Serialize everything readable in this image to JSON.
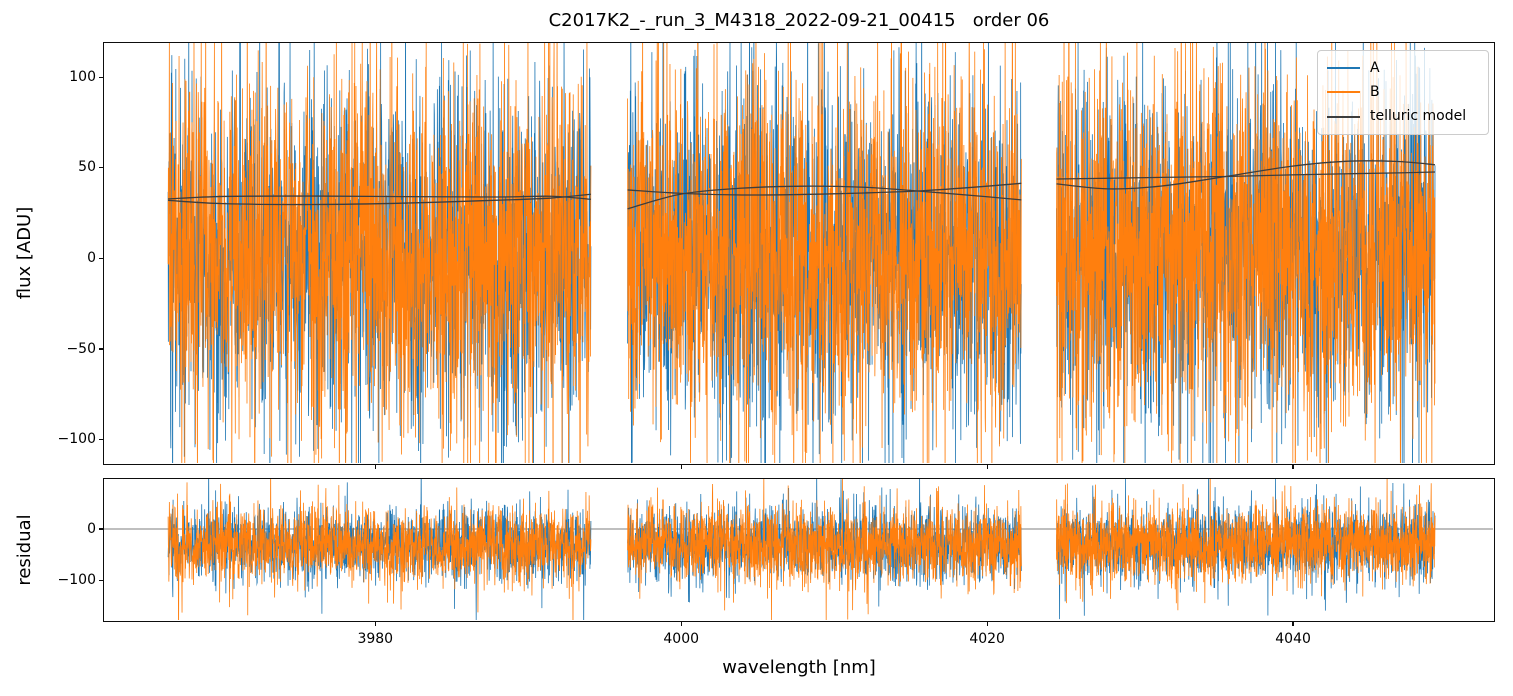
{
  "chart_data": {
    "type": "line",
    "title": "C2017K2_-_run_3_M4318_2022-09-21_00415   order 06",
    "xlabel": "wavelength [nm]",
    "xlim": [
      3962.2,
      4053.2
    ],
    "xticks": [
      3980,
      4000,
      4020,
      4040
    ],
    "xtick_labels": [
      "3980",
      "4000",
      "4020",
      "4040"
    ],
    "grid": false,
    "legend_position": "upper right",
    "segments_nm": [
      [
        3966.4,
        3994.1
      ],
      [
        3996.5,
        4022.3
      ],
      [
        4024.6,
        4049.4
      ]
    ],
    "points_per_segment": 1700,
    "noise_seed": 42,
    "tail_fraction": 0.06,
    "tail_scale": 1.7,
    "subplots": [
      {
        "name": "flux",
        "ylabel": "flux [ADU]",
        "ylim": [
          -114,
          119.5
        ],
        "yticks": [
          100,
          50,
          0,
          -50,
          -100
        ],
        "ytick_labels": [
          "100",
          "50",
          "0",
          "−50",
          "−100"
        ],
        "series": [
          {
            "name": "A",
            "color": "#1f77b4",
            "mean": 1,
            "sigma": 47
          },
          {
            "name": "B",
            "color": "#ff7f0e",
            "mean": 2,
            "sigma": 49
          }
        ]
      },
      {
        "name": "residual",
        "ylabel": "residual",
        "ylim": [
          -180,
          99
        ],
        "yticks": [
          0,
          -100
        ],
        "ytick_labels": [
          "0",
          "−100"
        ],
        "zero_line_color": "#555555",
        "series": [
          {
            "name": "A",
            "color": "#1f77b4",
            "mean": -30,
            "sigma": 36
          },
          {
            "name": "B",
            "color": "#ff7f0e",
            "mean": -31,
            "sigma": 38
          }
        ]
      }
    ],
    "telluric_model": {
      "label": "telluric model",
      "color": "#3d3d3d",
      "curves_per_segment": [
        {
          "segment": 0,
          "curves": [
            [
              [
                3966.4,
                32.8
              ],
              [
                3970,
                34.2
              ],
              [
                3976,
                34.4
              ],
              [
                3982,
                34.1
              ],
              [
                3988,
                33.9
              ],
              [
                3991.5,
                34.3
              ],
              [
                3994.1,
                32.6
              ]
            ],
            [
              [
                3966.4,
                32.0
              ],
              [
                3970,
                30.2
              ],
              [
                3976,
                29.7
              ],
              [
                3982,
                30.5
              ],
              [
                3988,
                32.1
              ],
              [
                3991.5,
                33.3
              ],
              [
                3994.1,
                35.4
              ]
            ]
          ]
        },
        {
          "segment": 1,
          "curves": [
            [
              [
                3996.5,
                37.8
              ],
              [
                4000,
                35.9
              ],
              [
                4004,
                35.0
              ],
              [
                4008,
                35.3
              ],
              [
                4012,
                36.1
              ],
              [
                4015.5,
                37.2
              ],
              [
                4019,
                39.2
              ],
              [
                4022.3,
                41.5
              ]
            ],
            [
              [
                3996.5,
                27.3
              ],
              [
                4000,
                35.5
              ],
              [
                4004,
                38.8
              ],
              [
                4008,
                39.9
              ],
              [
                4012,
                39.3
              ],
              [
                4015.5,
                37.2
              ],
              [
                4019,
                34.8
              ],
              [
                4022.3,
                32.3
              ]
            ]
          ]
        },
        {
          "segment": 2,
          "curves": [
            [
              [
                4024.6,
                41.2
              ],
              [
                4028,
                38.4
              ],
              [
                4031.5,
                40.0
              ],
              [
                4035.7,
                45.3
              ],
              [
                4040,
                51.0
              ],
              [
                4043.7,
                53.8
              ],
              [
                4047,
                53.6
              ],
              [
                4049.4,
                51.8
              ]
            ],
            [
              [
                4024.6,
                43.9
              ],
              [
                4028,
                44.3
              ],
              [
                4031.5,
                44.8
              ],
              [
                4035.7,
                45.3
              ],
              [
                4040,
                46.2
              ],
              [
                4043.7,
                46.8
              ],
              [
                4047,
                47.3
              ],
              [
                4049.4,
                47.8
              ]
            ]
          ]
        }
      ]
    },
    "legend": {
      "entries": [
        {
          "label": "A",
          "color": "#1f77b4"
        },
        {
          "label": "B",
          "color": "#ff7f0e"
        },
        {
          "label": "telluric model",
          "color": "#3d3d3d"
        }
      ]
    }
  }
}
